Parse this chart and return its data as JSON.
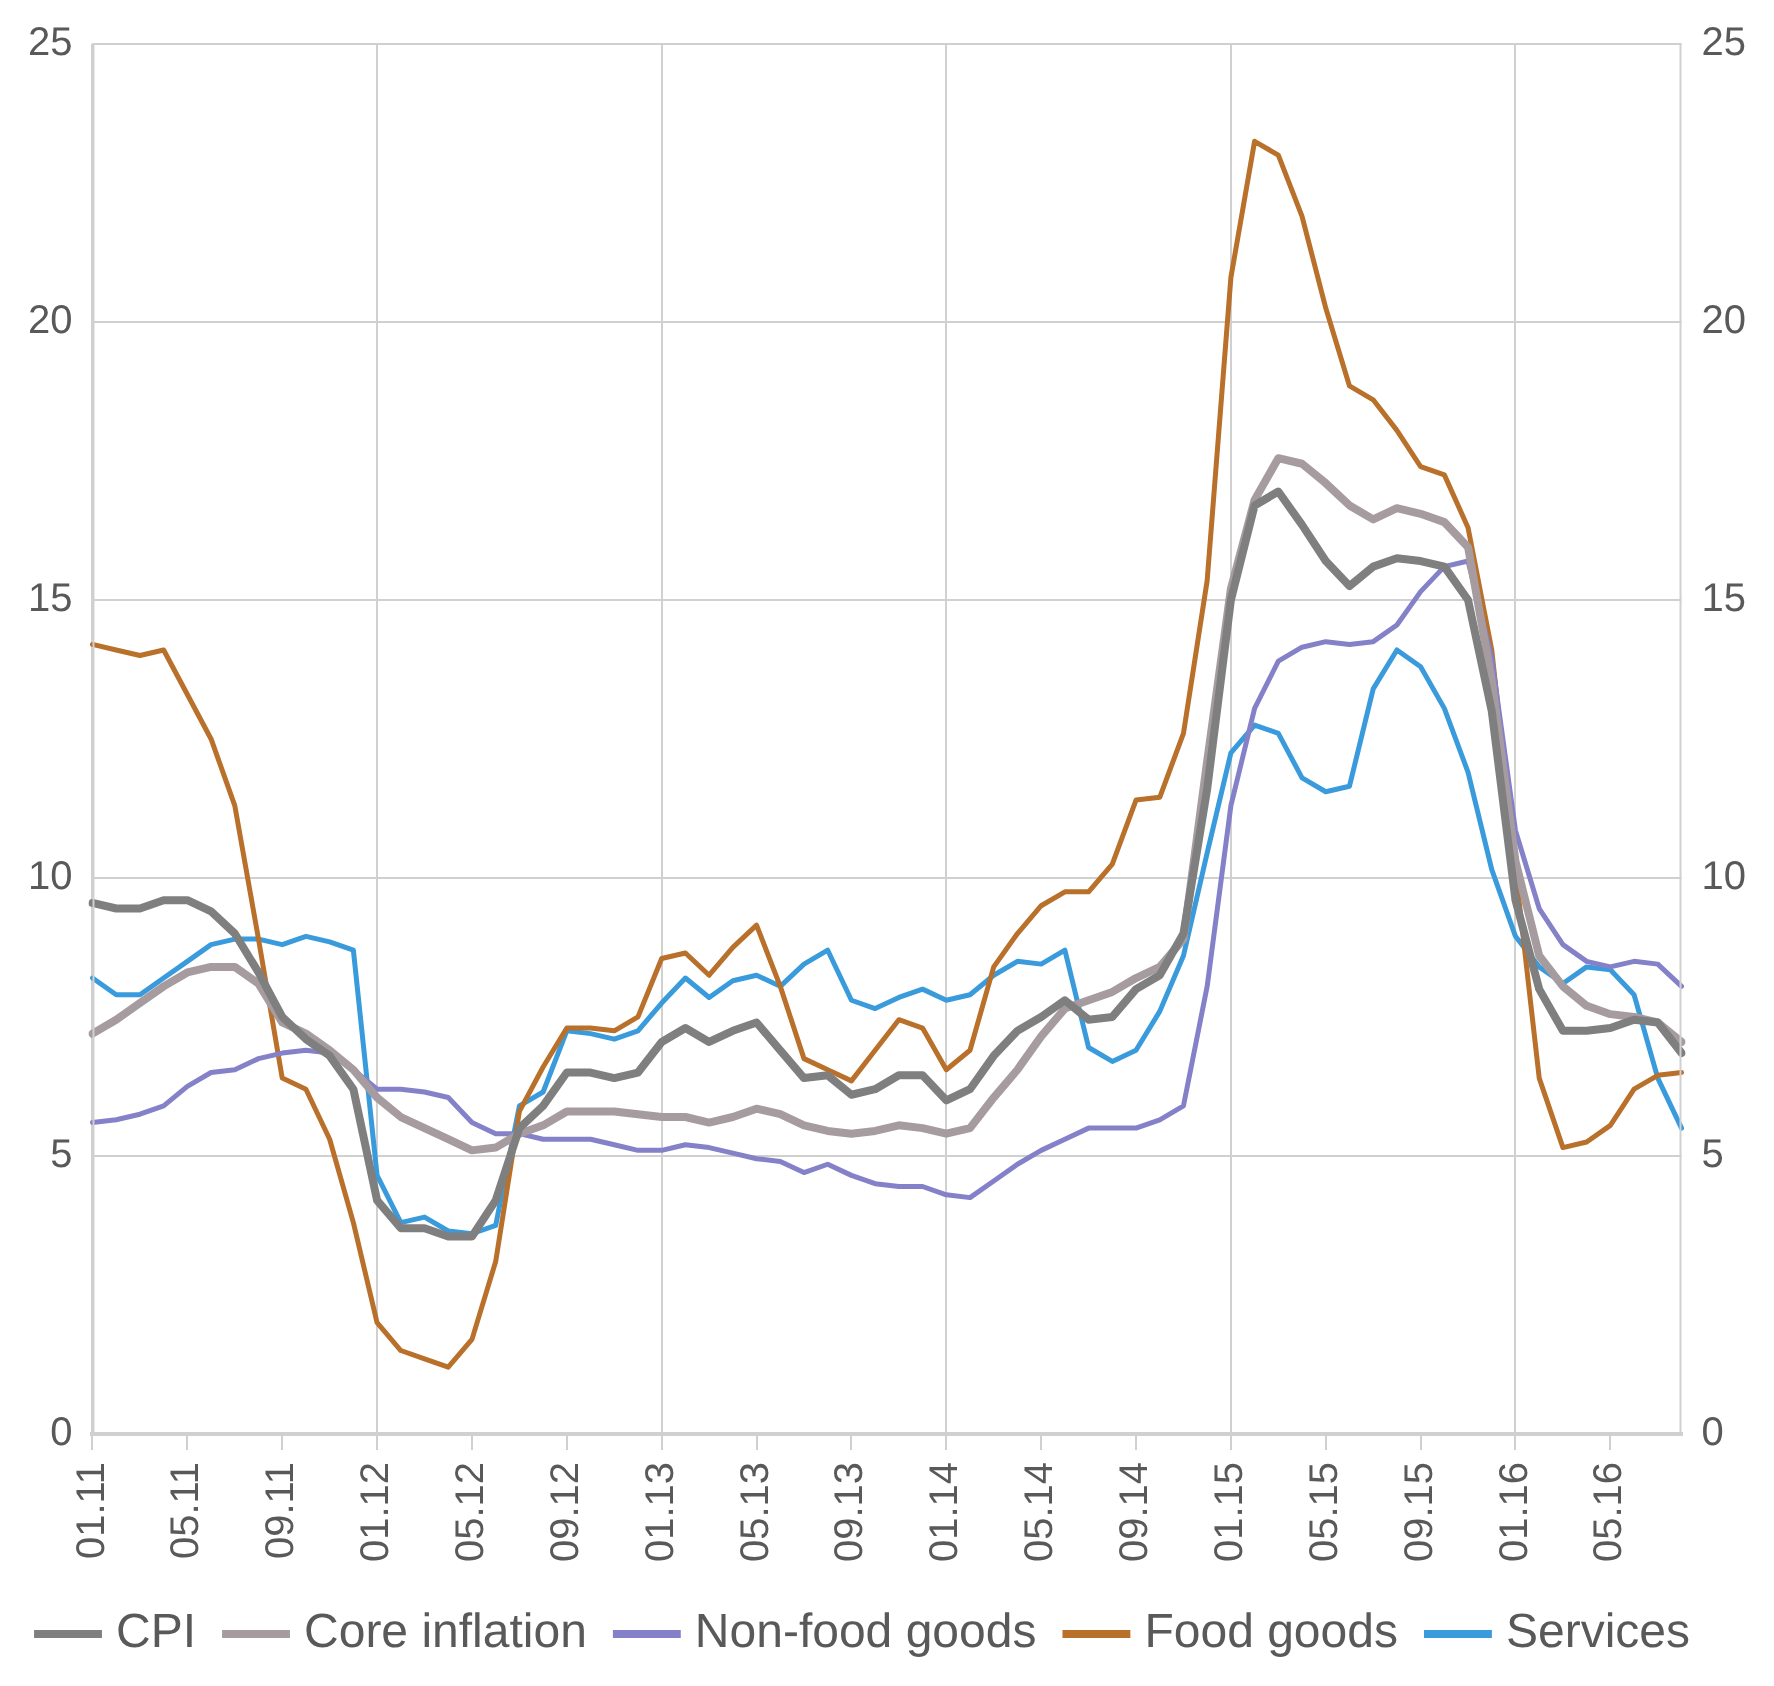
{
  "chart_data": {
    "type": "line",
    "categories": [
      "01.11",
      null,
      null,
      null,
      "05.11",
      null,
      null,
      null,
      "09.11",
      null,
      null,
      null,
      "01.12",
      null,
      null,
      null,
      "05.12",
      null,
      null,
      null,
      "09.12",
      null,
      null,
      null,
      "01.13",
      null,
      null,
      null,
      "05.13",
      null,
      null,
      null,
      "09.13",
      null,
      null,
      null,
      "01.14",
      null,
      null,
      null,
      "05.14",
      null,
      null,
      null,
      "09.14",
      null,
      null,
      null,
      "01.15",
      null,
      null,
      null,
      "05.15",
      null,
      null,
      null,
      "09.15",
      null,
      null,
      null,
      "01.16",
      null,
      null,
      null,
      "05.16",
      null,
      null,
      null
    ],
    "series": [
      {
        "name": "CPI",
        "color": "#7f7f7f",
        "values": [
          9.55,
          9.45,
          9.45,
          9.6,
          9.6,
          9.4,
          9.0,
          8.3,
          7.5,
          7.1,
          6.8,
          6.2,
          4.2,
          3.7,
          3.7,
          3.55,
          3.55,
          4.2,
          5.5,
          5.9,
          6.5,
          6.5,
          6.4,
          6.5,
          7.05,
          7.3,
          7.05,
          7.25,
          7.4,
          6.9,
          6.4,
          6.45,
          6.1,
          6.2,
          6.45,
          6.45,
          6.0,
          6.2,
          6.8,
          7.25,
          7.5,
          7.8,
          7.45,
          7.5,
          8.0,
          8.25,
          9.0,
          11.6,
          15.0,
          16.7,
          16.95,
          16.35,
          15.7,
          15.25,
          15.6,
          15.75,
          15.7,
          15.6,
          15.0,
          13.0,
          9.6,
          8.0,
          7.25,
          7.25,
          7.3,
          7.45,
          7.4,
          6.85
        ]
      },
      {
        "name": "Core inflation",
        "color": "#a69c9f",
        "values": [
          7.2,
          7.45,
          7.75,
          8.05,
          8.3,
          8.4,
          8.4,
          8.1,
          7.4,
          7.2,
          6.9,
          6.55,
          6.05,
          5.7,
          5.5,
          5.3,
          5.1,
          5.15,
          5.4,
          5.55,
          5.8,
          5.8,
          5.8,
          5.75,
          5.7,
          5.7,
          5.6,
          5.7,
          5.85,
          5.75,
          5.55,
          5.45,
          5.4,
          5.45,
          5.55,
          5.5,
          5.4,
          5.5,
          6.05,
          6.55,
          7.15,
          7.65,
          7.8,
          7.95,
          8.2,
          8.4,
          8.9,
          12.1,
          15.2,
          16.8,
          17.55,
          17.45,
          17.1,
          16.7,
          16.45,
          16.65,
          16.55,
          16.4,
          15.95,
          13.55,
          10.3,
          8.6,
          8.05,
          7.7,
          7.55,
          7.5,
          7.4,
          7.05
        ]
      },
      {
        "name": "Non-food goods",
        "color": "#8481c9",
        "values": [
          5.6,
          5.65,
          5.75,
          5.9,
          6.25,
          6.5,
          6.55,
          6.75,
          6.85,
          6.9,
          6.85,
          6.55,
          6.2,
          6.2,
          6.15,
          6.05,
          5.6,
          5.4,
          5.4,
          5.3,
          5.3,
          5.3,
          5.2,
          5.1,
          5.1,
          5.2,
          5.15,
          5.05,
          4.95,
          4.9,
          4.7,
          4.85,
          4.65,
          4.5,
          4.45,
          4.45,
          4.3,
          4.25,
          4.55,
          4.85,
          5.1,
          5.3,
          5.5,
          5.5,
          5.5,
          5.65,
          5.9,
          8.05,
          11.3,
          13.05,
          13.9,
          14.15,
          14.25,
          14.2,
          14.25,
          14.55,
          15.15,
          15.6,
          15.7,
          13.95,
          10.85,
          9.45,
          8.8,
          8.5,
          8.4,
          8.5,
          8.45,
          8.05
        ]
      },
      {
        "name": "Food goods",
        "color": "#b8702a",
        "values": [
          14.2,
          14.1,
          14.0,
          14.1,
          13.3,
          12.5,
          11.3,
          8.9,
          6.4,
          6.2,
          5.3,
          3.8,
          2.0,
          1.5,
          1.35,
          1.2,
          1.7,
          3.1,
          5.8,
          6.6,
          7.3,
          7.3,
          7.25,
          7.5,
          8.55,
          8.65,
          8.25,
          8.75,
          9.15,
          8.05,
          6.75,
          6.55,
          6.35,
          6.9,
          7.45,
          7.3,
          6.55,
          6.9,
          8.4,
          9.0,
          9.5,
          9.75,
          9.75,
          10.25,
          11.4,
          11.45,
          12.6,
          15.35,
          20.8,
          23.25,
          23.0,
          21.9,
          20.25,
          18.85,
          18.6,
          18.05,
          17.4,
          17.25,
          16.3,
          14.1,
          10.15,
          6.4,
          5.15,
          5.25,
          5.55,
          6.2,
          6.45,
          6.5
        ]
      },
      {
        "name": "Services",
        "color": "#3a9bdc",
        "values": [
          8.2,
          7.9,
          7.9,
          8.2,
          8.5,
          8.8,
          8.9,
          8.9,
          8.8,
          8.95,
          8.85,
          8.7,
          4.65,
          3.8,
          3.9,
          3.65,
          3.6,
          3.75,
          5.9,
          6.15,
          7.25,
          7.2,
          7.1,
          7.25,
          7.75,
          8.2,
          7.85,
          8.15,
          8.25,
          8.05,
          8.45,
          8.7,
          7.8,
          7.65,
          7.85,
          8.0,
          7.8,
          7.9,
          8.25,
          8.5,
          8.45,
          8.7,
          6.95,
          6.7,
          6.9,
          7.6,
          8.6,
          10.45,
          12.25,
          12.75,
          12.6,
          11.8,
          11.55,
          11.65,
          13.4,
          14.1,
          13.8,
          13.05,
          11.9,
          10.15,
          8.95,
          8.4,
          8.1,
          8.4,
          8.35,
          7.9,
          6.4,
          5.5
        ]
      }
    ],
    "ylim": [
      0,
      25
    ],
    "yticks": [
      0,
      5,
      10,
      15,
      20,
      25
    ],
    "y2lim": [
      0,
      25
    ],
    "y2ticks": [
      0,
      5,
      10,
      15,
      20,
      25
    ],
    "grid": true,
    "legend": "bottom",
    "marker": "none",
    "line_style": "solid"
  }
}
